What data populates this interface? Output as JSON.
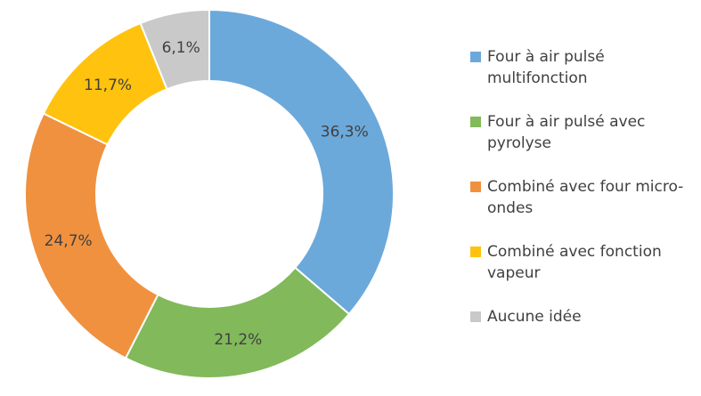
{
  "chart_data": {
    "type": "pie",
    "categories": [
      "Four à air pulsé multifonction",
      "Four à air pulsé avec pyrolyse",
      "Combiné avec four micro-ondes",
      "Combiné avec fonction vapeur",
      "Aucune idée"
    ],
    "values": [
      36.3,
      21.2,
      24.7,
      11.7,
      6.1
    ],
    "value_labels": [
      "36,3%",
      "21,2%",
      "24,7%",
      "11,7%",
      "6,1%"
    ],
    "colors": [
      "#6CA9DB",
      "#82B95A",
      "#F0913F",
      "#FFC20E",
      "#C9C9C9"
    ],
    "legend": "right"
  }
}
